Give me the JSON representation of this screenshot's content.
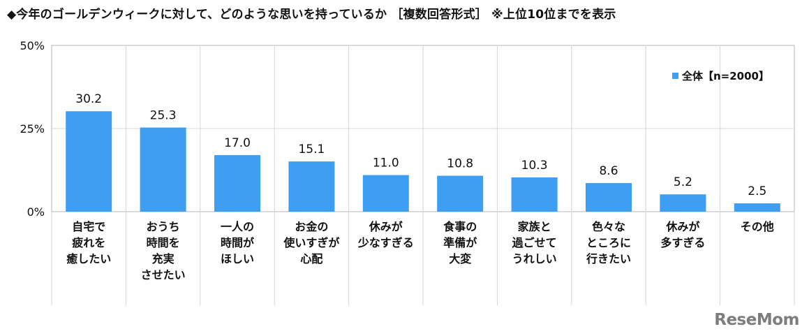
{
  "title": "◆今年のゴールデンウィークに対して、どのような思いを持っているか ［複数回答形式］ ※上位10位までを表示",
  "chart_data": {
    "type": "bar",
    "categories": [
      [
        "自宅で",
        "疲れを",
        "癒したい"
      ],
      [
        "おうち",
        "時間を",
        "充実",
        "させたい"
      ],
      [
        "一人の",
        "時間が",
        "ほしい"
      ],
      [
        "お金の",
        "使いすぎが",
        "心配"
      ],
      [
        "休みが",
        "少なすぎる"
      ],
      [
        "食事の",
        "準備が",
        "大変"
      ],
      [
        "家族と",
        "過ごせて",
        "うれしい"
      ],
      [
        "色々な",
        "ところに",
        "行きたい"
      ],
      [
        "休みが",
        "多すぎる"
      ],
      [
        "その他"
      ]
    ],
    "series": [
      {
        "name": "全体【n=2000】",
        "values": [
          30.2,
          25.3,
          17.0,
          15.1,
          11.0,
          10.8,
          10.3,
          8.6,
          5.2,
          2.5
        ],
        "labels": [
          "30.2",
          "25.3",
          "17.0",
          "15.1",
          "11.0",
          "10.8",
          "10.3",
          "8.6",
          "5.2",
          "2.5"
        ]
      }
    ],
    "ylim": [
      0,
      50
    ],
    "yticks": [
      0,
      25,
      50
    ],
    "ytick_labels": [
      "0%",
      "25%",
      "50%"
    ],
    "legend_position": "top-right",
    "colors": {
      "bar": "#3d9ef2",
      "grid": "#d6d6d6",
      "axis": "#b5b5b5"
    }
  },
  "watermark": "ReseMom"
}
